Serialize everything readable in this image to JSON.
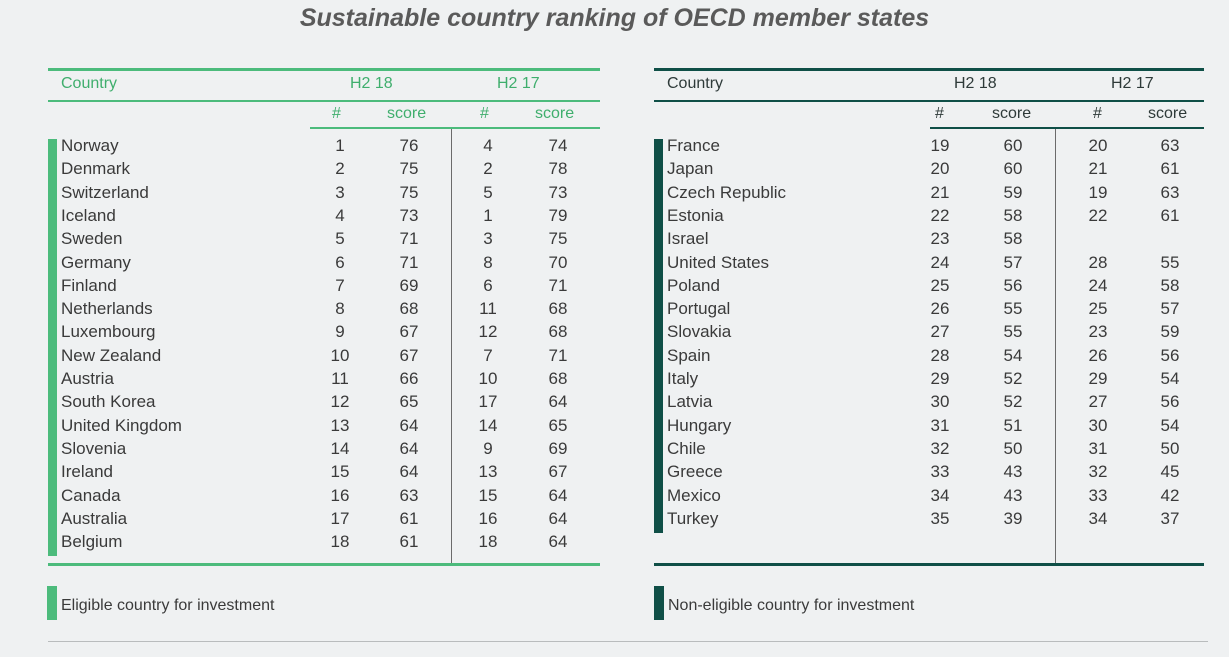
{
  "title": "Sustainable country ranking of OECD member states",
  "colors": {
    "eligible": "#4cbb7c",
    "non_eligible": "#0f4f47"
  },
  "eligible_table": {
    "country_header": "Country",
    "period_a": "H2 18",
    "period_b": "H2 17",
    "rank_label": "#",
    "score_label": "score",
    "rows": [
      [
        "Norway",
        "1",
        "76",
        "4",
        "74"
      ],
      [
        "Denmark",
        "2",
        "75",
        "2",
        "78"
      ],
      [
        "Switzerland",
        "3",
        "75",
        "5",
        "73"
      ],
      [
        "Iceland",
        "4",
        "73",
        "1",
        "79"
      ],
      [
        "Sweden",
        "5",
        "71",
        "3",
        "75"
      ],
      [
        "Germany",
        "6",
        "71",
        "8",
        "70"
      ],
      [
        "Finland",
        "7",
        "69",
        "6",
        "71"
      ],
      [
        "Netherlands",
        "8",
        "68",
        "11",
        "68"
      ],
      [
        "Luxembourg",
        "9",
        "67",
        "12",
        "68"
      ],
      [
        "New Zealand",
        "10",
        "67",
        "7",
        "71"
      ],
      [
        "Austria",
        "11",
        "66",
        "10",
        "68"
      ],
      [
        "South Korea",
        "12",
        "65",
        "17",
        "64"
      ],
      [
        "United Kingdom",
        "13",
        "64",
        "14",
        "65"
      ],
      [
        "Slovenia",
        "14",
        "64",
        "9",
        "69"
      ],
      [
        "Ireland",
        "15",
        "64",
        "13",
        "67"
      ],
      [
        "Canada",
        "16",
        "63",
        "15",
        "64"
      ],
      [
        "Australia",
        "17",
        "61",
        "16",
        "64"
      ],
      [
        "Belgium",
        "18",
        "61",
        "18",
        "64"
      ]
    ]
  },
  "non_eligible_table": {
    "country_header": "Country",
    "period_a": "H2 18",
    "period_b": "H2 17",
    "rank_label": "#",
    "score_label": "score",
    "rows": [
      [
        "France",
        "19",
        "60",
        "20",
        "63"
      ],
      [
        "Japan",
        "20",
        "60",
        "21",
        "61"
      ],
      [
        "Czech Republic",
        "21",
        "59",
        "19",
        "63"
      ],
      [
        "Estonia",
        "22",
        "58",
        "22",
        "61"
      ],
      [
        "Israel",
        "23",
        "58",
        "",
        ""
      ],
      [
        "United States",
        "24",
        "57",
        "28",
        "55"
      ],
      [
        "Poland",
        "25",
        "56",
        "24",
        "58"
      ],
      [
        "Portugal",
        "26",
        "55",
        "25",
        "57"
      ],
      [
        "Slovakia",
        "27",
        "55",
        "23",
        "59"
      ],
      [
        "Spain",
        "28",
        "54",
        "26",
        "56"
      ],
      [
        "Italy",
        "29",
        "52",
        "29",
        "54"
      ],
      [
        "Latvia",
        "30",
        "52",
        "27",
        "56"
      ],
      [
        "Hungary",
        "31",
        "51",
        "30",
        "54"
      ],
      [
        "Chile",
        "32",
        "50",
        "31",
        "50"
      ],
      [
        "Greece",
        "33",
        "43",
        "32",
        "45"
      ],
      [
        "Mexico",
        "34",
        "43",
        "33",
        "42"
      ],
      [
        "Turkey",
        "35",
        "39",
        "34",
        "37"
      ]
    ]
  },
  "legend": {
    "eligible": "Eligible country for investment",
    "non_eligible": "Non-eligible country for investment"
  }
}
